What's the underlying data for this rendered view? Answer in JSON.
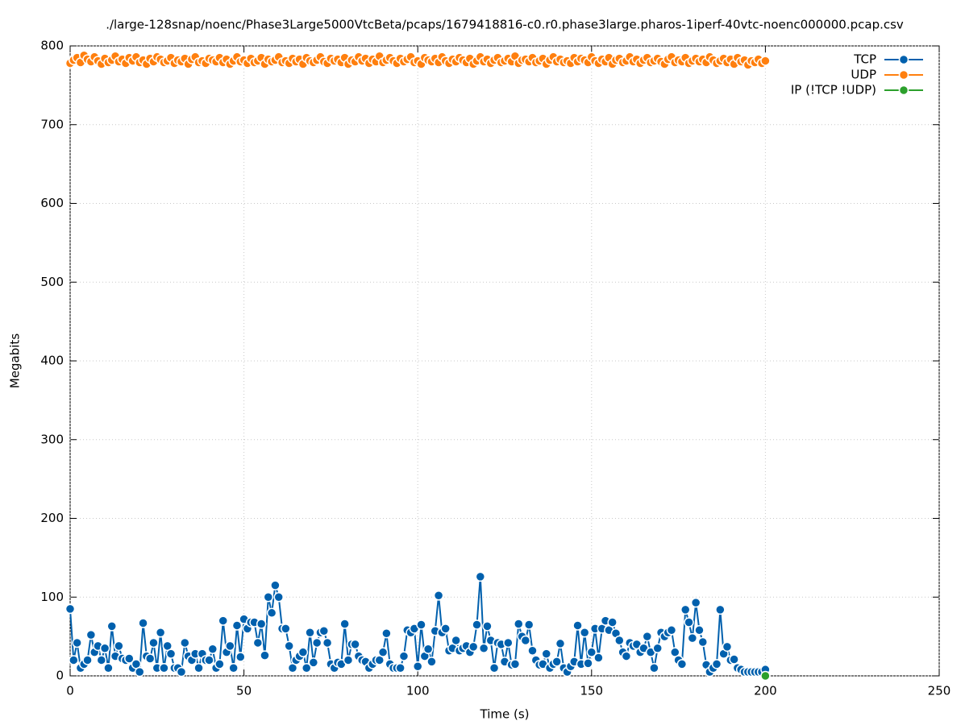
{
  "chart_data": {
    "type": "line",
    "title": "./large-128snap/noenc/Phase3Large5000VtcBeta/pcaps/1679418816-c0.r0.phase3large.pharos-1iperf-40vtc-noenc000000.pcap.csv",
    "x_label": "Time (s)",
    "y_label": "Megabits",
    "xlim": [
      0,
      250
    ],
    "xticks": [
      0,
      50,
      100,
      150,
      200,
      250
    ],
    "ylim": [
      0,
      800
    ],
    "yticks": [
      0,
      100,
      200,
      300,
      400,
      500,
      600,
      700,
      800
    ],
    "grid": true,
    "legend": "top-right",
    "x": [
      0,
      1,
      2,
      3,
      4,
      5,
      6,
      7,
      8,
      9,
      10,
      11,
      12,
      13,
      14,
      15,
      16,
      17,
      18,
      19,
      20,
      21,
      22,
      23,
      24,
      25,
      26,
      27,
      28,
      29,
      30,
      31,
      32,
      33,
      34,
      35,
      36,
      37,
      38,
      39,
      40,
      41,
      42,
      43,
      44,
      45,
      46,
      47,
      48,
      49,
      50,
      51,
      52,
      53,
      54,
      55,
      56,
      57,
      58,
      59,
      60,
      61,
      62,
      63,
      64,
      65,
      66,
      67,
      68,
      69,
      70,
      71,
      72,
      73,
      74,
      75,
      76,
      77,
      78,
      79,
      80,
      81,
      82,
      83,
      84,
      85,
      86,
      87,
      88,
      89,
      90,
      91,
      92,
      93,
      94,
      95,
      96,
      97,
      98,
      99,
      100,
      101,
      102,
      103,
      104,
      105,
      106,
      107,
      108,
      109,
      110,
      111,
      112,
      113,
      114,
      115,
      116,
      117,
      118,
      119,
      120,
      121,
      122,
      123,
      124,
      125,
      126,
      127,
      128,
      129,
      130,
      131,
      132,
      133,
      134,
      135,
      136,
      137,
      138,
      139,
      140,
      141,
      142,
      143,
      144,
      145,
      146,
      147,
      148,
      149,
      150,
      151,
      152,
      153,
      154,
      155,
      156,
      157,
      158,
      159,
      160,
      161,
      162,
      163,
      164,
      165,
      166,
      167,
      168,
      169,
      170,
      171,
      172,
      173,
      174,
      175,
      176,
      177,
      178,
      179,
      180,
      181,
      182,
      183,
      184,
      185,
      186,
      187,
      188,
      189,
      190,
      191,
      192,
      193,
      194,
      195,
      196,
      197,
      198,
      199,
      200
    ],
    "series": [
      {
        "name": "TCP",
        "color": "#0060ad",
        "values": [
          85,
          20,
          42,
          10,
          15,
          20,
          52,
          30,
          38,
          20,
          35,
          10,
          63,
          25,
          38,
          22,
          20,
          22,
          10,
          15,
          5,
          67,
          25,
          22,
          42,
          10,
          55,
          10,
          38,
          28,
          10,
          10,
          5,
          42,
          25,
          20,
          28,
          10,
          28,
          20,
          20,
          34,
          10,
          15,
          70,
          30,
          38,
          10,
          64,
          24,
          72,
          60,
          68,
          68,
          42,
          66,
          26,
          100,
          80,
          115,
          100,
          60,
          60,
          38,
          10,
          20,
          25,
          30,
          10,
          55,
          17,
          42,
          55,
          57,
          42,
          15,
          10,
          17,
          15,
          66,
          20,
          40,
          40,
          25,
          20,
          18,
          10,
          15,
          20,
          20,
          30,
          54,
          15,
          10,
          10,
          10,
          25,
          58,
          55,
          60,
          12,
          65,
          25,
          34,
          18,
          57,
          102,
          55,
          60,
          32,
          35,
          45,
          32,
          35,
          38,
          30,
          37,
          65,
          126,
          35,
          63,
          45,
          10,
          42,
          40,
          18,
          42,
          14,
          15,
          66,
          50,
          45,
          65,
          32,
          20,
          14,
          15,
          28,
          10,
          15,
          18,
          41,
          10,
          5,
          12,
          18,
          64,
          15,
          55,
          16,
          30,
          60,
          23,
          60,
          70,
          58,
          68,
          54,
          45,
          30,
          25,
          42,
          38,
          40,
          30,
          35,
          50,
          30,
          10,
          35,
          55,
          50,
          55,
          58,
          30,
          20,
          15,
          84,
          68,
          48,
          93,
          58,
          43,
          14,
          5,
          10,
          15,
          84,
          28,
          37,
          20,
          21,
          10,
          8,
          5,
          5,
          5,
          5,
          5,
          5,
          8
        ]
      },
      {
        "name": "UDP",
        "color": "#ff7f0e",
        "values": [
          778,
          782,
          785,
          779,
          788,
          783,
          780,
          786,
          781,
          777,
          784,
          779,
          782,
          787,
          780,
          783,
          778,
          785,
          781,
          786,
          779,
          782,
          777,
          784,
          780,
          786,
          783,
          779,
          781,
          785,
          778,
          782,
          780,
          784,
          777,
          783,
          786,
          779,
          781,
          778,
          784,
          782,
          780,
          785,
          779,
          783,
          777,
          781,
          786,
          780,
          782,
          778,
          784,
          779,
          781,
          785,
          777,
          783,
          780,
          782,
          786,
          779,
          781,
          778,
          784,
          780,
          783,
          777,
          785,
          781,
          779,
          782,
          786,
          780,
          778,
          784,
          781,
          783,
          779,
          785,
          777,
          782,
          780,
          786,
          781,
          784,
          778,
          783,
          780,
          787,
          779,
          782,
          785,
          781,
          778,
          784,
          780,
          783,
          786,
          779,
          781,
          777,
          785,
          782,
          780,
          784,
          779,
          786,
          781,
          778,
          783,
          780,
          785,
          782,
          779,
          784,
          777,
          781,
          786,
          780,
          783,
          778,
          782,
          785,
          779,
          781,
          784,
          780,
          787,
          778,
          782,
          783,
          780,
          785,
          779,
          781,
          784,
          777,
          782,
          786,
          780,
          783,
          779,
          781,
          778,
          785,
          780,
          784,
          782,
          779,
          786,
          781,
          778,
          783,
          780,
          785,
          777,
          782,
          784,
          779,
          781,
          786,
          780,
          783,
          778,
          782,
          785,
          779,
          781,
          784,
          780,
          777,
          783,
          786,
          779,
          782,
          780,
          785,
          778,
          781,
          784,
          780,
          783,
          779,
          786,
          782,
          778,
          781,
          784,
          779,
          783,
          777,
          785,
          780,
          782,
          776,
          781,
          779,
          783,
          778,
          781
        ]
      },
      {
        "name": "IP (!TCP  !UDP)",
        "color": "#2ca02c",
        "values": [
          null,
          null,
          null,
          null,
          null,
          null,
          null,
          null,
          null,
          null,
          null,
          null,
          null,
          null,
          null,
          null,
          null,
          null,
          null,
          null,
          null,
          null,
          null,
          null,
          null,
          null,
          null,
          null,
          null,
          null,
          null,
          null,
          null,
          null,
          null,
          null,
          null,
          null,
          null,
          null,
          null,
          null,
          null,
          null,
          null,
          null,
          null,
          null,
          null,
          null,
          null,
          null,
          null,
          null,
          null,
          null,
          null,
          null,
          null,
          null,
          null,
          null,
          null,
          null,
          null,
          null,
          null,
          null,
          null,
          null,
          null,
          null,
          null,
          null,
          null,
          null,
          null,
          null,
          null,
          null,
          null,
          null,
          null,
          null,
          null,
          null,
          null,
          null,
          null,
          null,
          null,
          null,
          null,
          null,
          null,
          null,
          null,
          null,
          null,
          null,
          null,
          null,
          null,
          null,
          null,
          null,
          null,
          null,
          null,
          null,
          null,
          null,
          null,
          null,
          null,
          null,
          null,
          null,
          null,
          null,
          null,
          null,
          null,
          null,
          null,
          null,
          null,
          null,
          null,
          null,
          null,
          null,
          null,
          null,
          null,
          null,
          null,
          null,
          null,
          null,
          null,
          null,
          null,
          null,
          null,
          null,
          null,
          null,
          null,
          null,
          null,
          null,
          null,
          null,
          null,
          null,
          null,
          null,
          null,
          null,
          null,
          null,
          null,
          null,
          null,
          null,
          null,
          null,
          null,
          null,
          null,
          null,
          null,
          null,
          null,
          null,
          null,
          null,
          null,
          null,
          null,
          null,
          null,
          null,
          null,
          null,
          null,
          null,
          null,
          null,
          null,
          null,
          null,
          null,
          null,
          null,
          null,
          null,
          null,
          null,
          0
        ]
      }
    ]
  }
}
